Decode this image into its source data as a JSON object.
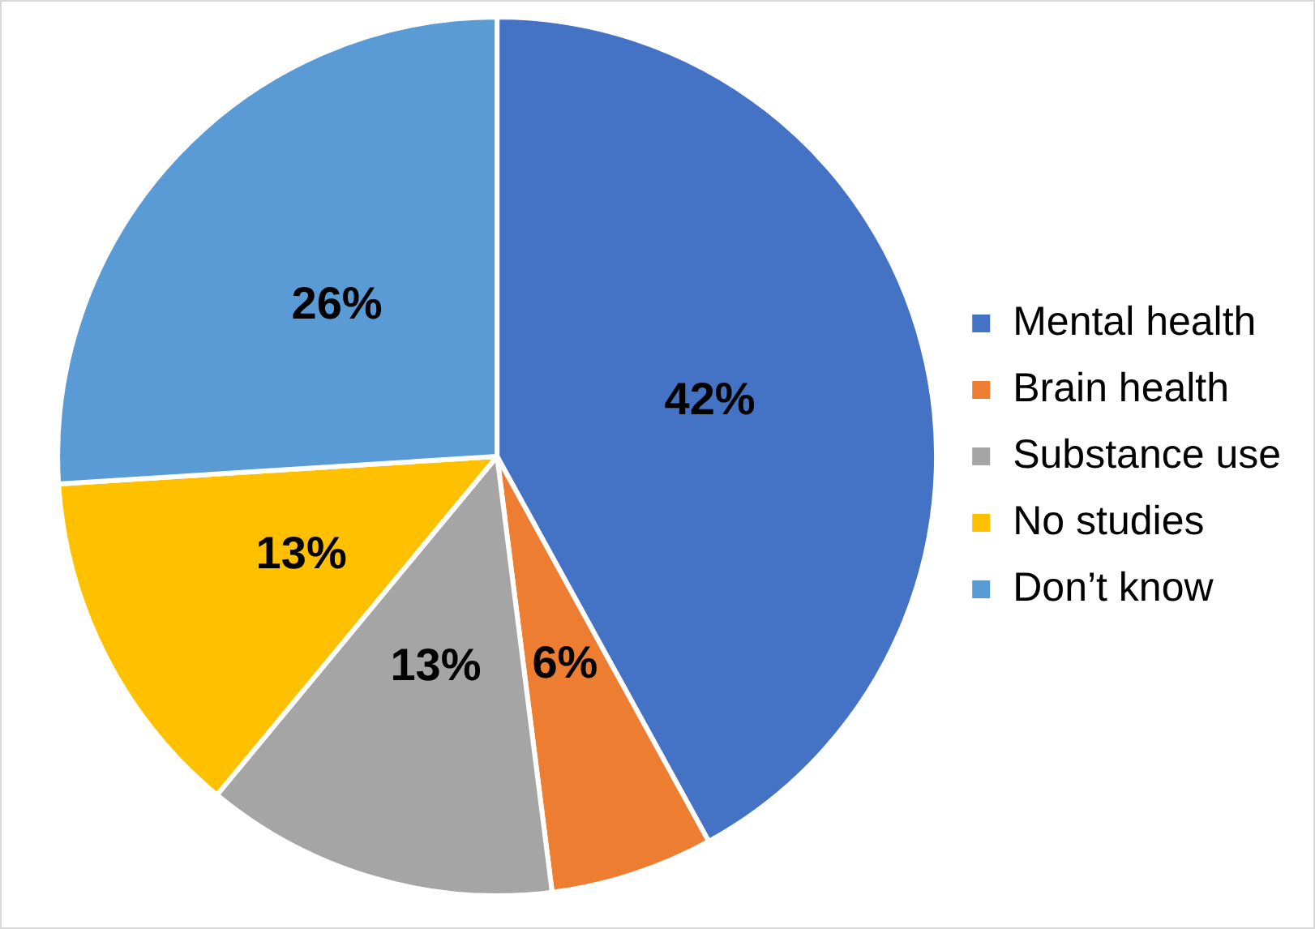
{
  "chart_data": {
    "type": "pie",
    "categories": [
      "Mental health",
      "Brain health",
      "Substance use",
      "No studies",
      "Don’t know"
    ],
    "values": [
      42,
      6,
      13,
      13,
      26
    ],
    "colors": [
      "#4472c4",
      "#ed7d31",
      "#a5a5a5",
      "#ffc000",
      "#5b9bd5"
    ],
    "value_labels": [
      "42%",
      "6%",
      "13%",
      "13%",
      "26%"
    ],
    "legend": "right"
  }
}
